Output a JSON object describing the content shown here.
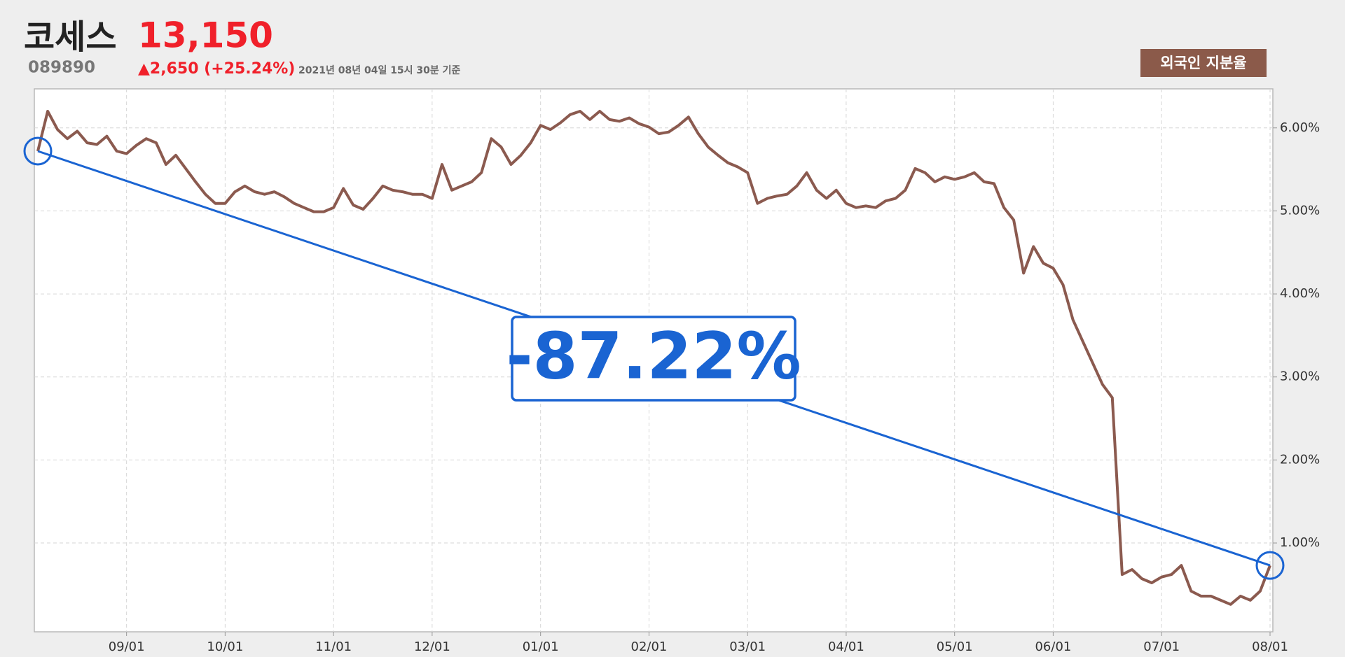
{
  "header": {
    "code": "089890",
    "price": "13,150",
    "change": "▲2,650 (+25.24%)",
    "timestamp": "2021년 08년 04일 15시 30분 기준",
    "badge": "외국인 지분율"
  },
  "chart_data": {
    "type": "line",
    "title": "코세스",
    "categories": [
      null,
      null,
      null,
      null,
      null,
      null,
      null,
      null,
      null,
      "09/01",
      null,
      null,
      null,
      null,
      null,
      null,
      null,
      null,
      null,
      "10/01",
      null,
      null,
      null,
      null,
      null,
      null,
      null,
      null,
      null,
      null,
      "11/01",
      null,
      null,
      null,
      null,
      null,
      null,
      null,
      null,
      null,
      "12/01",
      null,
      null,
      null,
      null,
      null,
      null,
      null,
      null,
      null,
      null,
      "01/01",
      null,
      null,
      null,
      null,
      null,
      null,
      null,
      null,
      null,
      null,
      "02/01",
      null,
      null,
      null,
      null,
      null,
      null,
      null,
      null,
      null,
      "03/01",
      null,
      null,
      null,
      null,
      null,
      null,
      null,
      null,
      null,
      "04/01",
      null,
      null,
      null,
      null,
      null,
      null,
      null,
      null,
      null,
      null,
      "05/01",
      null,
      null,
      null,
      null,
      null,
      null,
      null,
      null,
      null,
      "06/01",
      null,
      null,
      null,
      null,
      null,
      null,
      null,
      null,
      null,
      null,
      "07/01",
      null,
      null,
      null,
      null,
      null,
      null,
      null,
      null,
      null,
      null,
      "08/01"
    ],
    "series": [
      {
        "name": "외국인 지분율",
        "color": "#8b5a4f",
        "values": [
          5.72,
          6.2,
          5.98,
          5.87,
          5.96,
          5.82,
          5.8,
          5.9,
          5.72,
          5.69,
          5.79,
          5.87,
          5.82,
          5.56,
          5.67,
          5.51,
          5.35,
          5.2,
          5.09,
          5.09,
          5.23,
          5.3,
          5.23,
          5.2,
          5.23,
          5.17,
          5.09,
          5.04,
          4.99,
          4.99,
          5.04,
          5.27,
          5.07,
          5.02,
          5.15,
          5.3,
          5.25,
          5.23,
          5.2,
          5.2,
          5.15,
          5.56,
          5.25,
          5.3,
          5.35,
          5.46,
          5.87,
          5.77,
          5.56,
          5.67,
          5.82,
          6.03,
          5.98,
          6.06,
          6.16,
          6.2,
          6.1,
          6.2,
          6.1,
          6.08,
          6.12,
          6.05,
          6.01,
          5.93,
          5.95,
          6.03,
          6.13,
          5.93,
          5.77,
          5.67,
          5.58,
          5.53,
          5.46,
          5.09,
          5.15,
          5.18,
          5.2,
          5.3,
          5.46,
          5.25,
          5.15,
          5.25,
          5.09,
          5.04,
          5.06,
          5.04,
          5.12,
          5.15,
          5.25,
          5.51,
          5.46,
          5.35,
          5.41,
          5.38,
          5.41,
          5.46,
          5.35,
          5.33,
          5.04,
          4.89,
          4.25,
          4.57,
          4.37,
          4.31,
          4.11,
          3.69,
          3.43,
          3.17,
          2.91,
          2.75,
          0.62,
          0.68,
          0.57,
          0.52,
          0.59,
          0.62,
          0.73,
          0.42,
          0.36,
          0.36,
          0.31,
          0.26,
          0.36,
          0.31,
          0.42,
          0.73
        ]
      }
    ],
    "ylim": [
      -0.07,
      6.47
    ],
    "yticks": [
      {
        "value": 1,
        "label": "1.00%"
      },
      {
        "value": 2,
        "label": "2.00%"
      },
      {
        "value": 3,
        "label": "3.00%"
      },
      {
        "value": 4,
        "label": "4.00%"
      },
      {
        "value": 5,
        "label": "5.00%"
      },
      {
        "value": 6,
        "label": "6.00%"
      }
    ],
    "grid": true,
    "annotation": {
      "text": "-87.22%",
      "color": "#1a64d2"
    }
  }
}
